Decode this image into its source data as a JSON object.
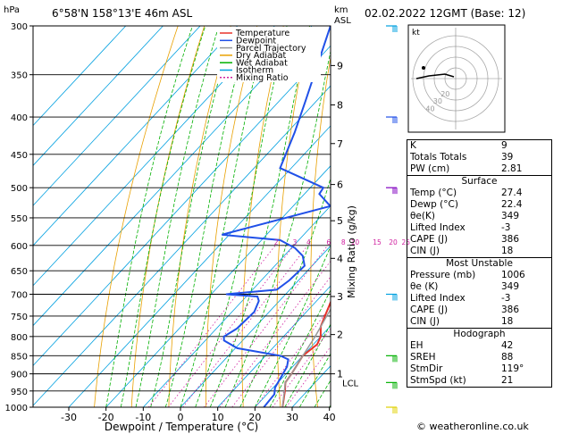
{
  "location": "6°58'N 158°13'E 46m ASL",
  "datetime": "02.02.2022 12GMT (Base: 12)",
  "hpa_label": "hPa",
  "km_label": "km",
  "asl_label": "ASL",
  "mixing_axis_label": "Mixing Ratio (g/kg)",
  "credit": "© weatheronline.co.uk",
  "legend": [
    {
      "label": "Temperature",
      "color": "#e8332a",
      "dash": ""
    },
    {
      "label": "Dewpoint",
      "color": "#2050e8",
      "dash": ""
    },
    {
      "label": "Parcel Trajectory",
      "color": "#999999",
      "dash": ""
    },
    {
      "label": "Dry Adiabat",
      "color": "#e8a000",
      "dash": ""
    },
    {
      "label": "Wet Adiabat",
      "color": "#00b000",
      "dash": ""
    },
    {
      "label": "Isotherm",
      "color": "#00a0e0",
      "dash": ""
    },
    {
      "label": "Mixing Ratio",
      "color": "#d020a0",
      "dash": "2,2"
    }
  ],
  "chart_data": {
    "type": "line",
    "xlabel": "Dewpoint / Temperature (°C)",
    "ylabel": "hPa",
    "xlim": [
      -35,
      40
    ],
    "ylim": [
      1000,
      300
    ],
    "pressure_ticks": [
      300,
      350,
      400,
      450,
      500,
      550,
      600,
      650,
      700,
      750,
      800,
      850,
      900,
      950,
      1000
    ],
    "temp_ticks": [
      -30,
      -20,
      -10,
      0,
      10,
      20,
      30,
      40
    ],
    "height_ticks": [
      {
        "km": "1",
        "p": 900
      },
      {
        "km": "2",
        "p": 795
      },
      {
        "km": "3",
        "p": 705
      },
      {
        "km": "4",
        "p": 625
      },
      {
        "km": "5",
        "p": 555
      },
      {
        "km": "6",
        "p": 495
      },
      {
        "km": "7",
        "p": 435
      },
      {
        "km": "8",
        "p": 385
      },
      {
        "km": "9",
        "p": 340
      }
    ],
    "lcl": {
      "label": "LCL",
      "p": 925
    },
    "mixing_ratio_labels": [
      "2",
      "3",
      "4",
      "6",
      "8",
      "10",
      "15",
      "20",
      "25"
    ],
    "mixing_ratio_values": [
      2,
      3,
      4,
      6,
      8,
      10,
      15,
      20,
      25
    ],
    "series": [
      {
        "name": "Temperature",
        "color": "#e8332a",
        "points": [
          [
            1000,
            27.4
          ],
          [
            950,
            24.0
          ],
          [
            925,
            22.0
          ],
          [
            900,
            21.5
          ],
          [
            850,
            20.0
          ],
          [
            820,
            21.0
          ],
          [
            800,
            20.0
          ],
          [
            775,
            17.5
          ],
          [
            750,
            16.0
          ],
          [
            700,
            13.0
          ],
          [
            650,
            10.0
          ],
          [
            600,
            6.5
          ],
          [
            550,
            1.5
          ],
          [
            510,
            -3.5
          ],
          [
            490,
            -7.0
          ],
          [
            470,
            -8.0
          ],
          [
            450,
            -10.0
          ],
          [
            420,
            -14.5
          ],
          [
            400,
            -18.0
          ],
          [
            380,
            -21.0
          ],
          [
            370,
            -23.5
          ]
        ]
      },
      {
        "name": "Dewpoint",
        "color": "#2050e8",
        "points": [
          [
            1000,
            22.4
          ],
          [
            960,
            22.0
          ],
          [
            940,
            20.5
          ],
          [
            910,
            19.5
          ],
          [
            880,
            18.5
          ],
          [
            860,
            17.0
          ],
          [
            850,
            14.0
          ],
          [
            830,
            0.5
          ],
          [
            810,
            -5.0
          ],
          [
            800,
            -6.0
          ],
          [
            780,
            -4.5
          ],
          [
            740,
            -4.0
          ],
          [
            715,
            -5.5
          ],
          [
            705,
            -7.0
          ],
          [
            700,
            -16.0
          ],
          [
            690,
            -3.5
          ],
          [
            670,
            -2.5
          ],
          [
            640,
            -2.0
          ],
          [
            620,
            -5.0
          ],
          [
            605,
            -9.0
          ],
          [
            590,
            -15.0
          ],
          [
            580,
            -32.0
          ],
          [
            530,
            -10.0
          ],
          [
            510,
            -16.0
          ],
          [
            500,
            -16.5
          ],
          [
            470,
            -33.0
          ],
          [
            420,
            -38.0
          ],
          [
            380,
            -43.0
          ],
          [
            300,
            -55.0
          ]
        ]
      },
      {
        "name": "Parcel Trajectory",
        "color": "#999999",
        "points": [
          [
            1000,
            27.4
          ],
          [
            925,
            22.0
          ],
          [
            900,
            21.5
          ],
          [
            850,
            20.0
          ],
          [
            800,
            18.5
          ],
          [
            750,
            16.5
          ],
          [
            700,
            14.5
          ],
          [
            650,
            12.0
          ],
          [
            600,
            8.5
          ],
          [
            550,
            4.5
          ],
          [
            500,
            0.0
          ],
          [
            450,
            -5.5
          ],
          [
            400,
            -12.0
          ],
          [
            370,
            -17.0
          ]
        ]
      }
    ]
  },
  "hodograph": {
    "label": "kt",
    "rings": [
      10,
      20,
      30,
      40
    ],
    "ring_labels": [
      "20",
      "30",
      "40"
    ]
  },
  "indices": [
    {
      "label": "K",
      "value": "9"
    },
    {
      "label": "Totals Totals",
      "value": "39"
    },
    {
      "label": "PW (cm)",
      "value": "2.81"
    }
  ],
  "surface": {
    "title": "Surface",
    "rows": [
      {
        "label": "Temp (°C)",
        "value": "27.4"
      },
      {
        "label": "Dewp (°C)",
        "value": "22.4"
      },
      {
        "label": "θe(K)",
        "value": "349"
      },
      {
        "label": "Lifted Index",
        "value": "-3"
      },
      {
        "label": "CAPE (J)",
        "value": "386"
      },
      {
        "label": "CIN (J)",
        "value": "18"
      }
    ]
  },
  "most_unstable": {
    "title": "Most Unstable",
    "rows": [
      {
        "label": "Pressure (mb)",
        "value": "1006"
      },
      {
        "label": "θe (K)",
        "value": "349"
      },
      {
        "label": "Lifted Index",
        "value": "-3"
      },
      {
        "label": "CAPE (J)",
        "value": "386"
      },
      {
        "label": "CIN (J)",
        "value": "18"
      }
    ]
  },
  "hodo_table": {
    "title": "Hodograph",
    "rows": [
      {
        "label": "EH",
        "value": "42"
      },
      {
        "label": "SREH",
        "value": "88"
      },
      {
        "label": "StmDir",
        "value": "119°"
      },
      {
        "label": "StmSpd (kt)",
        "value": "21"
      }
    ]
  }
}
